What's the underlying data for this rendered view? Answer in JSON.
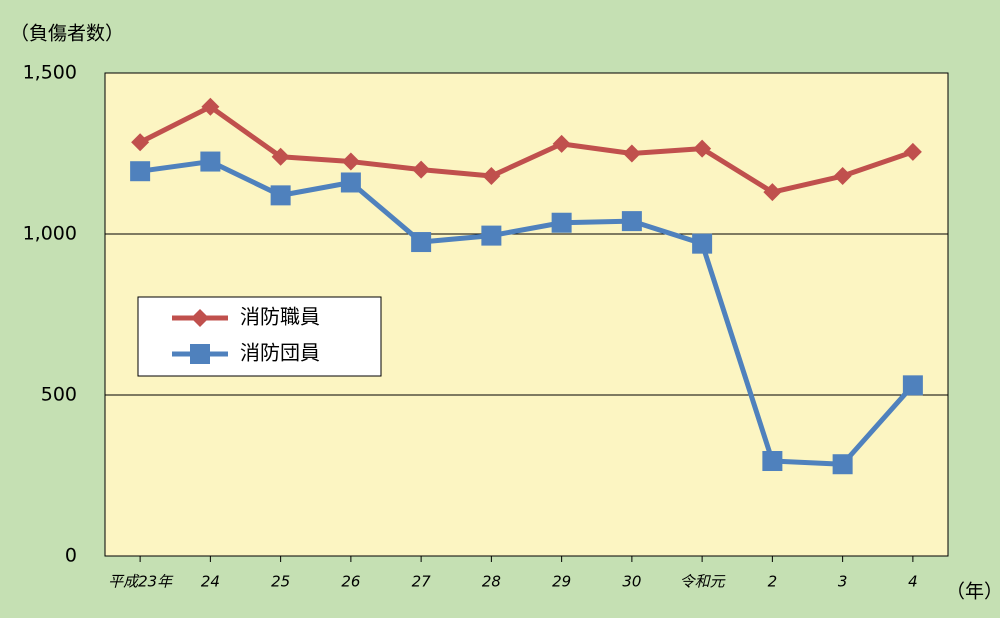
{
  "chart_data": {
    "type": "line",
    "y_label": "（負傷者数）",
    "x_label": "（年）",
    "categories": [
      "平成23年",
      "24",
      "25",
      "26",
      "27",
      "28",
      "29",
      "30",
      "令和元",
      "2",
      "3",
      "4"
    ],
    "series": [
      {
        "name": "消防職員",
        "color": "#c0504d",
        "marker": "diamond",
        "values": [
          1285,
          1395,
          1240,
          1225,
          1200,
          1180,
          1280,
          1250,
          1265,
          1130,
          1180,
          1255
        ]
      },
      {
        "name": "消防団員",
        "color": "#4f81bd",
        "marker": "square",
        "values": [
          1195,
          1225,
          1120,
          1160,
          975,
          995,
          1035,
          1040,
          970,
          295,
          285,
          530
        ]
      }
    ],
    "ylim": [
      0,
      1500
    ],
    "yticks": [
      0,
      {
        "value": 500,
        "label": "500"
      },
      {
        "value": 1000,
        "label": "1,000"
      },
      {
        "value": 1500,
        "label": "1,500"
      }
    ],
    "grid": true,
    "legend": "left"
  }
}
